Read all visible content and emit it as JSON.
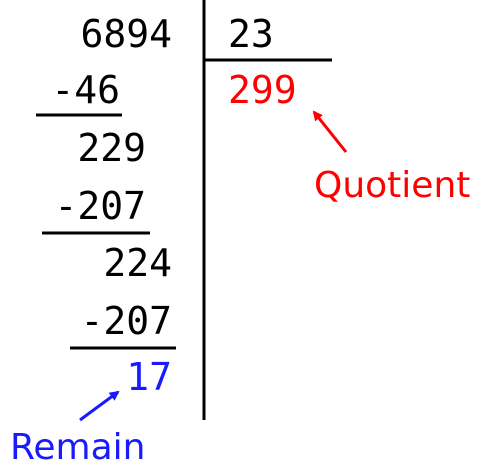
{
  "division": {
    "dividend": "6894",
    "divisor": "23",
    "quotient": "299",
    "steps": [
      {
        "subtract": "-46",
        "result": "229"
      },
      {
        "subtract": "-207",
        "result": "224"
      },
      {
        "subtract": "-207",
        "result": "17"
      }
    ]
  },
  "labels": {
    "quotient": "Quotient",
    "remainder": "Remain"
  },
  "colors": {
    "ink": "#000000",
    "quotient": "#ff0000",
    "remainder": "#1a1aff"
  }
}
